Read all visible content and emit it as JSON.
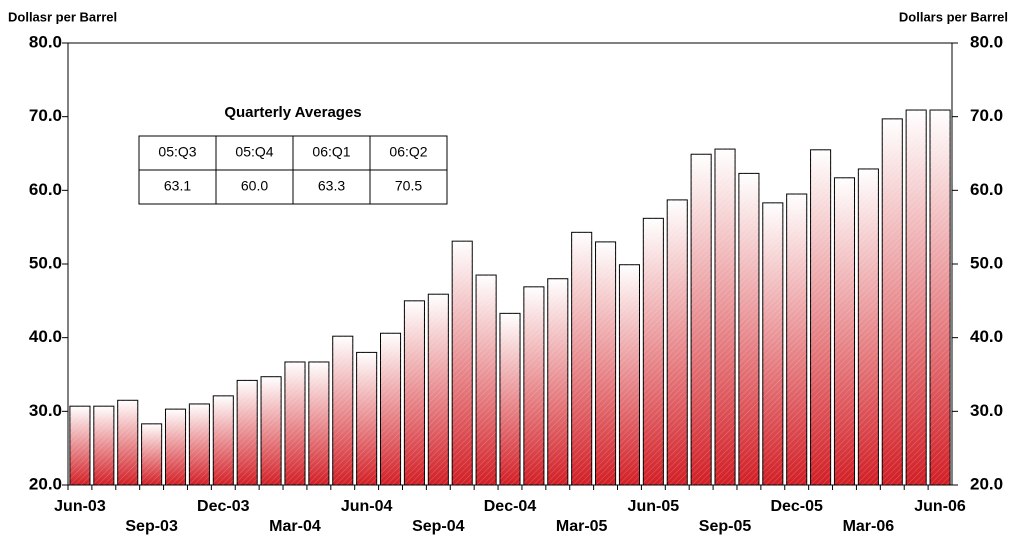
{
  "chart_data": {
    "type": "bar",
    "y_label": "Dollasr per Barrel",
    "y2_label": "Dollars per Barrel",
    "color": "#d21f26",
    "categories": [
      "Jun-03",
      null,
      null,
      "Sep-03",
      null,
      null,
      "Dec-03",
      null,
      null,
      "Mar-04",
      null,
      null,
      "Jun-04",
      null,
      null,
      "Sep-04",
      null,
      null,
      "Dec-04",
      null,
      null,
      "Mar-05",
      null,
      null,
      "Jun-05",
      null,
      null,
      "Sep-05",
      null,
      null,
      "Dec-05",
      null,
      null,
      "Mar-06",
      null,
      null,
      "Jun-06"
    ],
    "values": [
      30.7,
      30.7,
      31.5,
      28.3,
      30.3,
      31.0,
      32.1,
      34.2,
      34.7,
      36.7,
      36.7,
      40.2,
      38.0,
      40.6,
      45.0,
      45.9,
      53.1,
      48.5,
      43.3,
      46.9,
      48.0,
      54.3,
      53.0,
      49.9,
      56.2,
      58.7,
      64.9,
      65.6,
      62.3,
      58.3,
      59.5,
      65.5,
      61.7,
      62.9,
      69.7,
      70.9,
      70.9
    ],
    "ylim": [
      20,
      80
    ],
    "yticks": [
      {
        "value": 20,
        "label": "20.0"
      },
      {
        "value": 30,
        "label": "30.0"
      },
      {
        "value": 40,
        "label": "40.0"
      },
      {
        "value": 50,
        "label": "50.0"
      },
      {
        "value": 60,
        "label": "60.0"
      },
      {
        "value": 70,
        "label": "70.0"
      },
      {
        "value": 80,
        "label": "80.0"
      }
    ],
    "y2lim": [
      20,
      80
    ],
    "y2ticks": [
      {
        "value": 20,
        "label": "20.0"
      },
      {
        "value": 30,
        "label": "30.0"
      },
      {
        "value": 40,
        "label": "40.0"
      },
      {
        "value": 50,
        "label": "50.0"
      },
      {
        "value": 60,
        "label": "60.0"
      },
      {
        "value": 70,
        "label": "70.0"
      },
      {
        "value": 80,
        "label": "80.0"
      }
    ],
    "table": {
      "title": "Quarterly Averages",
      "columns": [
        "05:Q3",
        "05:Q4",
        "06:Q1",
        "06:Q2"
      ],
      "values": [
        "63.1",
        "60.0",
        "63.3",
        "70.5"
      ]
    }
  }
}
